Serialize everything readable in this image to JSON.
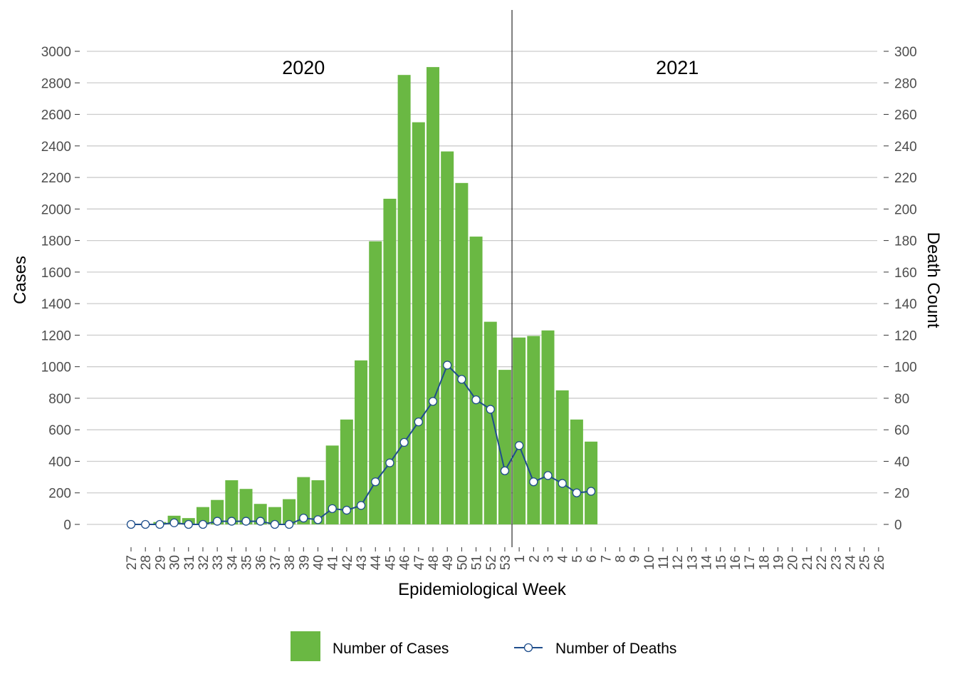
{
  "chart_data": {
    "type": "bar",
    "xlabel": "Epidemiological Week",
    "ylabel": "Cases",
    "y2label": "Death Count",
    "ylim": [
      0,
      3000
    ],
    "y2lim": [
      0,
      300
    ],
    "yticks": [
      0,
      200,
      400,
      600,
      800,
      1000,
      1200,
      1400,
      1600,
      1800,
      2000,
      2200,
      2400,
      2600,
      2800,
      3000
    ],
    "y2ticks": [
      0,
      20,
      40,
      60,
      80,
      100,
      120,
      140,
      160,
      180,
      200,
      220,
      240,
      260,
      280,
      300
    ],
    "grid": true,
    "legend_position": "bottom",
    "categories": [
      "27",
      "28",
      "29",
      "30",
      "31",
      "32",
      "33",
      "34",
      "35",
      "36",
      "37",
      "38",
      "39",
      "40",
      "41",
      "42",
      "43",
      "44",
      "45",
      "46",
      "47",
      "48",
      "49",
      "50",
      "51",
      "52",
      "53",
      "1",
      "2",
      "3",
      "4",
      "5",
      "6",
      "7",
      "8",
      "9",
      "10",
      "11",
      "12",
      "13",
      "14",
      "15",
      "16",
      "17",
      "18",
      "19",
      "20",
      "21",
      "22",
      "23",
      "24",
      "25",
      "26"
    ],
    "year_labels": [
      {
        "text": "2020",
        "category_index": 12
      },
      {
        "text": "2021",
        "category_index": 38
      }
    ],
    "divider_after_category_index": 26,
    "series": [
      {
        "name": "Number of Cases",
        "type": "bar",
        "axis": "left",
        "color": "#6ab843",
        "values": [
          0,
          3,
          15,
          55,
          40,
          110,
          155,
          280,
          225,
          130,
          110,
          160,
          300,
          280,
          500,
          665,
          1040,
          1795,
          2065,
          2850,
          2550,
          2900,
          2365,
          2165,
          1825,
          1285,
          980,
          1185,
          1195,
          1230,
          850,
          665,
          525,
          null,
          null,
          null,
          null,
          null,
          null,
          null,
          null,
          null,
          null,
          null,
          null,
          null,
          null,
          null,
          null,
          null,
          null,
          null,
          null
        ]
      },
      {
        "name": "Number of Deaths",
        "type": "line",
        "axis": "right",
        "color": "#1f4e8c",
        "values": [
          0,
          0,
          0,
          1,
          0,
          0,
          2,
          2,
          2,
          2,
          0,
          0,
          4,
          3,
          10,
          9,
          12,
          27,
          39,
          52,
          65,
          78,
          101,
          92,
          79,
          73,
          34,
          50,
          27,
          31,
          26,
          20,
          21,
          null,
          null,
          null,
          null,
          null,
          null,
          null,
          null,
          null,
          null,
          null,
          null,
          null,
          null,
          null,
          null,
          null,
          null,
          null,
          null
        ]
      }
    ]
  }
}
